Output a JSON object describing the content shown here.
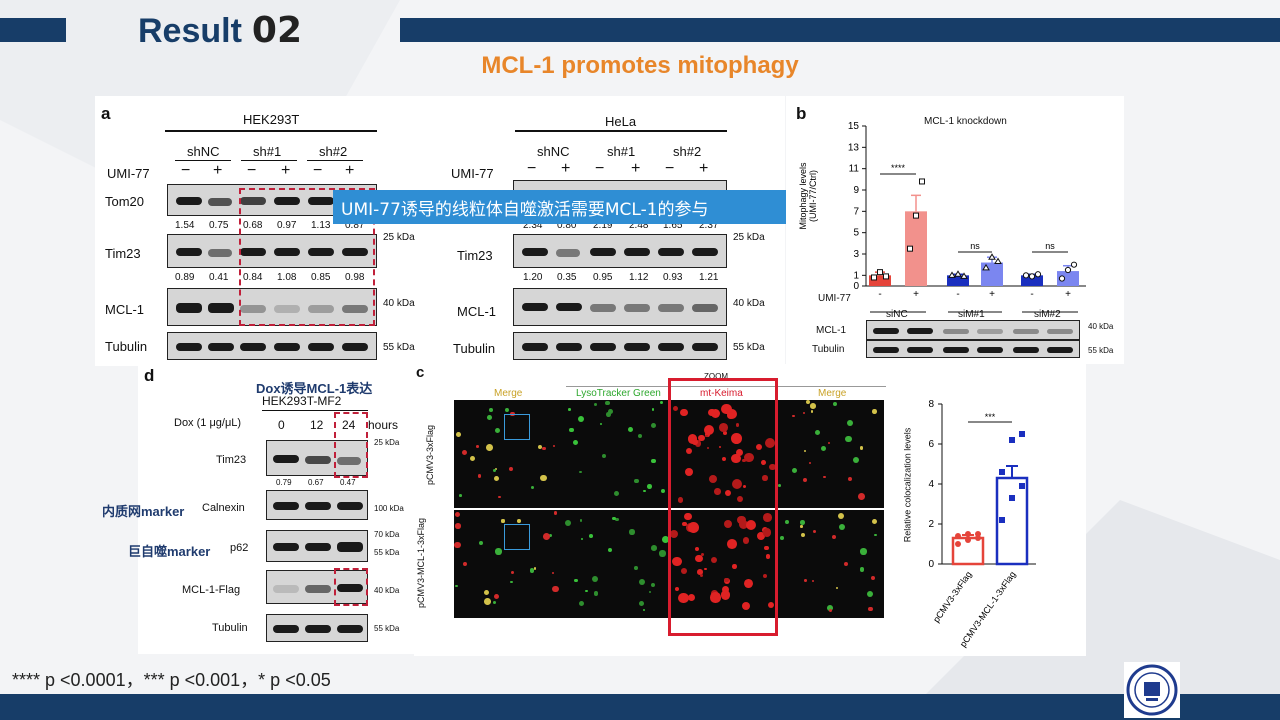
{
  "slide": {
    "title": "Result",
    "title_num": "02",
    "subtitle": "MCL-1 promotes mitophagy",
    "pvalues": "**** p <0.0001，*** p <0.001，* p <0.05",
    "colors": {
      "navy": "#173d68",
      "orange": "#e8862a",
      "highlight": "#2f8ed4",
      "dash_red": "#c0203a"
    }
  },
  "panel_a": {
    "label": "a",
    "overlay_text": "UMI-77诱导的线粒体自噬激活需要MCL-1的参与",
    "hek": {
      "cell_line": "HEK293T",
      "groups": [
        "shNC",
        "sh#1",
        "sh#2"
      ],
      "treat_label": "UMI-77",
      "signs": [
        "−",
        "+",
        "−",
        "+",
        "−",
        "+"
      ],
      "rows": [
        "Tom20",
        "Tim23",
        "MCL-1",
        "Tubulin"
      ],
      "tom20_q": [
        "1.54",
        "0.75",
        "0.68",
        "0.97",
        "1.13",
        "0.87"
      ],
      "tim23_q": [
        "0.89",
        "0.41",
        "0.84",
        "1.08",
        "0.85",
        "0.98"
      ]
    },
    "hela": {
      "cell_line": "HeLa",
      "groups": [
        "shNC",
        "sh#1",
        "sh#2"
      ],
      "treat_label": "UMI-77",
      "signs": [
        "−",
        "+",
        "−",
        "+",
        "−",
        "+"
      ],
      "rows": [
        "Tim23",
        "MCL-1",
        "Tubulin"
      ],
      "top_q": [
        "2.34",
        "0.80",
        "2.19",
        "2.48",
        "1.65",
        "2.37"
      ],
      "tim23_q": [
        "1.20",
        "0.35",
        "0.95",
        "1.12",
        "0.93",
        "1.21"
      ]
    },
    "markers": [
      "25 kDa",
      "40 kDa",
      "55 kDa"
    ]
  },
  "panel_b": {
    "label": "b",
    "title": "MCL-1 knockdown",
    "ylabel": "Mitophagy levels\n(UMI-77/Ctrl)",
    "yticks": [
      "0",
      "1",
      "3",
      "5",
      "7",
      "9",
      "11",
      "13",
      "15"
    ],
    "treat_label": "UMI-77",
    "signs": [
      "-",
      "+",
      "-",
      "+",
      "-",
      "+"
    ],
    "groups": [
      "siNC",
      "siM#1",
      "siM#2"
    ],
    "sig": [
      "****",
      "ns",
      "ns"
    ],
    "blot_rows": [
      "MCL-1",
      "Tubulin"
    ],
    "markers": [
      "40 kDa",
      "55 kDa"
    ]
  },
  "panel_d": {
    "label": "d",
    "annotation": "Dox诱导MCL-1表达",
    "cell_line": "HEK293T-MF2",
    "dox_label": "Dox (1 μg/μL)",
    "hours": [
      "0",
      "12",
      "24"
    ],
    "hours_unit": "hours",
    "rows": [
      "Tim23",
      "Calnexin",
      "p62",
      "MCL-1-Flag",
      "Tubulin"
    ],
    "tim23_q": [
      "0.79",
      "0.67",
      "0.47"
    ],
    "markers": [
      "25 kDa",
      "100 kDa",
      "70 kDa",
      "55 kDa",
      "40 kDa",
      "55 kDa"
    ],
    "side_notes": [
      "内质网marker",
      "巨自噬marker"
    ]
  },
  "panel_c": {
    "label": "c",
    "zoom": "ZOOM",
    "columns": [
      "Merge",
      "LysoTracker Green",
      "mt-Keima",
      "Merge"
    ],
    "rows": [
      "pCMV3-3xFlag",
      "pCMV3-MCL-1-3xFlag"
    ],
    "sig": "***",
    "ylabel": "Relative colocalization levels",
    "yticks": [
      "0",
      "2",
      "4",
      "6",
      "8"
    ]
  },
  "chart_data": [
    {
      "type": "bar",
      "title": "MCL-1 knockdown",
      "ylabel": "Mitophagy levels (UMI-77/Ctrl)",
      "ylim": [
        0,
        15
      ],
      "categories": [
        "siNC -",
        "siNC +",
        "siM#1 -",
        "siM#1 +",
        "siM#2 -",
        "siM#2 +"
      ],
      "values": [
        1.0,
        7.0,
        1.0,
        2.2,
        1.0,
        1.4
      ],
      "errors": [
        0.3,
        1.5,
        0.1,
        0.5,
        0.1,
        0.5
      ],
      "points": [
        [
          0.8,
          1.3,
          0.9
        ],
        [
          3.5,
          6.6,
          9.8
        ],
        [
          1.0,
          1.1,
          0.9
        ],
        [
          1.7,
          2.7,
          2.3
        ],
        [
          1.0,
          0.9,
          1.1
        ],
        [
          0.7,
          1.5,
          2.0
        ]
      ],
      "colors": [
        "#e5443a",
        "#f2918c",
        "#1a2fbf",
        "#7b86f0",
        "#1a2fbf",
        "#7b86f0"
      ]
    },
    {
      "type": "bar",
      "ylabel": "Relative colocalization levels",
      "ylim": [
        0,
        8
      ],
      "categories": [
        "pCMV3-3xFlag",
        "pCMV3-MCL-1-3xFlag"
      ],
      "values": [
        1.3,
        4.3
      ],
      "errors": [
        0.15,
        0.6
      ],
      "points": [
        [
          1.0,
          1.2,
          1.3,
          1.4,
          1.5,
          1.5
        ],
        [
          2.2,
          3.3,
          3.9,
          4.6,
          6.2,
          6.5
        ]
      ],
      "colors": [
        "#e5443a",
        "#1a2fbf"
      ]
    }
  ]
}
